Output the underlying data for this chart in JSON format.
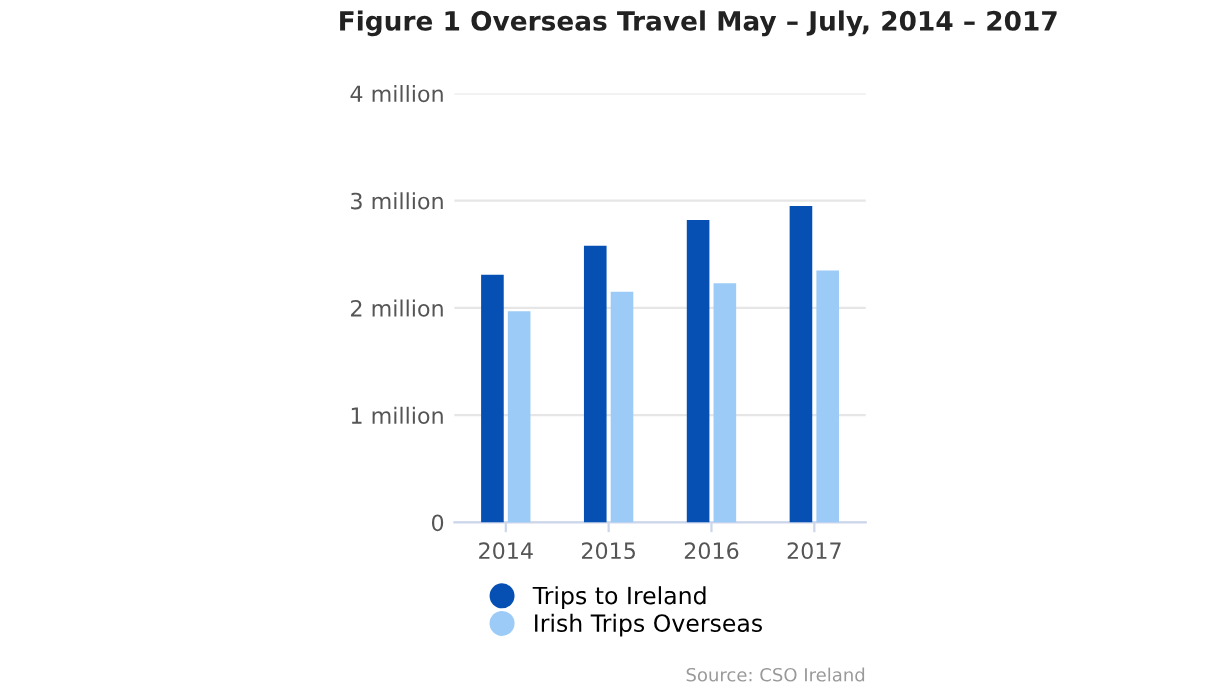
{
  "chart_data": {
    "type": "bar",
    "title": "Figure 1 Overseas Travel May – July, 2014 – 2017",
    "categories": [
      "2014",
      "2015",
      "2016",
      "2017"
    ],
    "series": [
      {
        "name": "Trips to Ireland",
        "color": "#0650b4",
        "values": [
          2310000,
          2580000,
          2820000,
          2950000
        ]
      },
      {
        "name": "Irish Trips Overseas",
        "color": "#9ccbf7",
        "values": [
          1970000,
          2150000,
          2230000,
          2350000
        ]
      }
    ],
    "ylim": [
      0,
      4000000
    ],
    "yticks": [
      {
        "value": 0,
        "label": "0"
      },
      {
        "value": 1000000,
        "label": "1 million"
      },
      {
        "value": 2000000,
        "label": "2 million"
      },
      {
        "value": 3000000,
        "label": "3 million"
      },
      {
        "value": 4000000,
        "label": "4 million"
      }
    ],
    "grid": "y",
    "legend": "bottom",
    "annotations": [
      "Source: CSO Ireland"
    ]
  }
}
